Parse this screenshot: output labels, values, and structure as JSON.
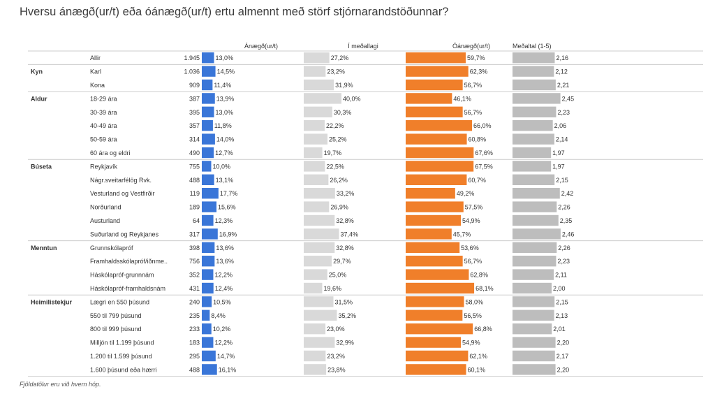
{
  "title": "Hversu ánægð(ur/t) eða óánægð(ur/t) ertu almennt með störf stjórnarandstöðunnar?",
  "footnote": "Fjöldatölur eru við hvern hóp.",
  "colors": {
    "satisfied": "#3a76d8",
    "neutral": "#d9d9d9",
    "dissatisfied": "#f07f2a",
    "mean": "#bdbdbd"
  },
  "chart_data": {
    "type": "bar",
    "columns": [
      {
        "key": "satisfied",
        "label": "Ánægð(ur/t)",
        "max": 100
      },
      {
        "key": "neutral",
        "label": "Í meðallagi",
        "max": 100
      },
      {
        "key": "dissatisfied",
        "label": "Óánægð(ur/t)",
        "max": 100
      },
      {
        "key": "mean",
        "label": "Meðaltal (1-5)",
        "max": 5
      }
    ],
    "groups": [
      {
        "name": "",
        "rows": [
          {
            "label": "Allir",
            "n": "1.945",
            "satisfied": 13.0,
            "neutral": 27.2,
            "dissatisfied": 59.7,
            "mean": 2.16
          }
        ]
      },
      {
        "name": "Kyn",
        "rows": [
          {
            "label": "Karl",
            "n": "1.036",
            "satisfied": 14.5,
            "neutral": 23.2,
            "dissatisfied": 62.3,
            "mean": 2.12
          },
          {
            "label": "Kona",
            "n": "909",
            "satisfied": 11.4,
            "neutral": 31.9,
            "dissatisfied": 56.7,
            "mean": 2.21
          }
        ]
      },
      {
        "name": "Aldur",
        "rows": [
          {
            "label": "18-29 ára",
            "n": "387",
            "satisfied": 13.9,
            "neutral": 40.0,
            "dissatisfied": 46.1,
            "mean": 2.45
          },
          {
            "label": "30-39 ára",
            "n": "395",
            "satisfied": 13.0,
            "neutral": 30.3,
            "dissatisfied": 56.7,
            "mean": 2.23
          },
          {
            "label": "40-49 ára",
            "n": "357",
            "satisfied": 11.8,
            "neutral": 22.2,
            "dissatisfied": 66.0,
            "mean": 2.06
          },
          {
            "label": "50-59 ára",
            "n": "314",
            "satisfied": 14.0,
            "neutral": 25.2,
            "dissatisfied": 60.8,
            "mean": 2.14
          },
          {
            "label": "60 ára og eldri",
            "n": "490",
            "satisfied": 12.7,
            "neutral": 19.7,
            "dissatisfied": 67.6,
            "mean": 1.97
          }
        ]
      },
      {
        "name": "Búseta",
        "rows": [
          {
            "label": "Reykjavík",
            "n": "755",
            "satisfied": 10.0,
            "neutral": 22.5,
            "dissatisfied": 67.5,
            "mean": 1.97
          },
          {
            "label": "Nágr.sveitarfélög Rvk.",
            "n": "488",
            "satisfied": 13.1,
            "neutral": 26.2,
            "dissatisfied": 60.7,
            "mean": 2.15
          },
          {
            "label": "Vesturland og Vestfirðir",
            "n": "119",
            "satisfied": 17.7,
            "neutral": 33.2,
            "dissatisfied": 49.2,
            "mean": 2.42
          },
          {
            "label": "Norðurland",
            "n": "189",
            "satisfied": 15.6,
            "neutral": 26.9,
            "dissatisfied": 57.5,
            "mean": 2.26
          },
          {
            "label": "Austurland",
            "n": "64",
            "satisfied": 12.3,
            "neutral": 32.8,
            "dissatisfied": 54.9,
            "mean": 2.35
          },
          {
            "label": "Suðurland og Reykjanes",
            "n": "317",
            "satisfied": 16.9,
            "neutral": 37.4,
            "dissatisfied": 45.7,
            "mean": 2.46
          }
        ]
      },
      {
        "name": "Menntun",
        "rows": [
          {
            "label": "Grunnskólapróf",
            "n": "398",
            "satisfied": 13.6,
            "neutral": 32.8,
            "dissatisfied": 53.6,
            "mean": 2.26
          },
          {
            "label": "Framhaldsskólapróf/iðnme..",
            "n": "756",
            "satisfied": 13.6,
            "neutral": 29.7,
            "dissatisfied": 56.7,
            "mean": 2.23
          },
          {
            "label": "Háskólapróf-grunnnám",
            "n": "352",
            "satisfied": 12.2,
            "neutral": 25.0,
            "dissatisfied": 62.8,
            "mean": 2.11
          },
          {
            "label": "Háskólapróf-framhaldsnám",
            "n": "431",
            "satisfied": 12.4,
            "neutral": 19.6,
            "dissatisfied": 68.1,
            "mean": 2.0
          }
        ]
      },
      {
        "name": "Heimilistekjur",
        "rows": [
          {
            "label": "Lægri en 550 þúsund",
            "n": "240",
            "satisfied": 10.5,
            "neutral": 31.5,
            "dissatisfied": 58.0,
            "mean": 2.15
          },
          {
            "label": "550 til 799 þúsund",
            "n": "235",
            "satisfied": 8.4,
            "neutral": 35.2,
            "dissatisfied": 56.5,
            "mean": 2.13
          },
          {
            "label": "800 til 999 þúsund",
            "n": "233",
            "satisfied": 10.2,
            "neutral": 23.0,
            "dissatisfied": 66.8,
            "mean": 2.01
          },
          {
            "label": "Milljón til 1.199 þúsund",
            "n": "183",
            "satisfied": 12.2,
            "neutral": 32.9,
            "dissatisfied": 54.9,
            "mean": 2.2
          },
          {
            "label": "1.200 til 1.599 þúsund",
            "n": "295",
            "satisfied": 14.7,
            "neutral": 23.2,
            "dissatisfied": 62.1,
            "mean": 2.17
          },
          {
            "label": "1.600 þúsund eða hærri",
            "n": "488",
            "satisfied": 16.1,
            "neutral": 23.8,
            "dissatisfied": 60.1,
            "mean": 2.2
          }
        ]
      }
    ]
  }
}
